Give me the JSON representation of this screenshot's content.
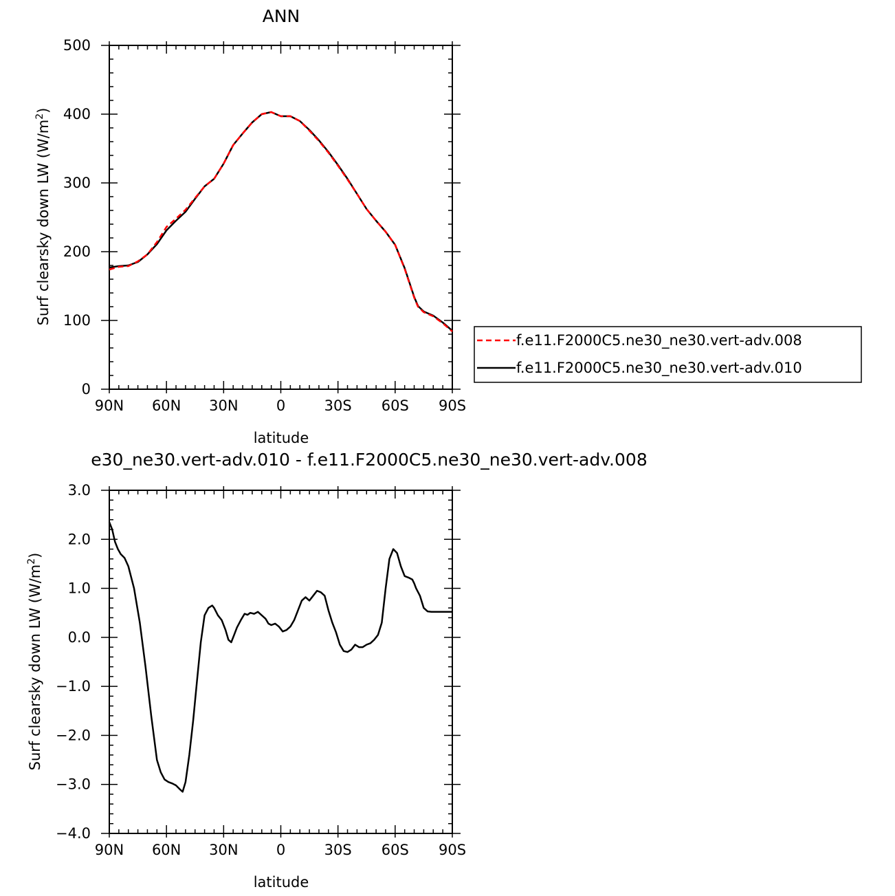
{
  "chart_data": [
    {
      "type": "line",
      "title": "ANN",
      "xlabel": "latitude",
      "ylabel_main": "Surf clearsky down LW (W/m",
      "ylabel_sup": "2",
      "ylabel_close": ")",
      "xlim": [
        90,
        -90
      ],
      "ylim": [
        0,
        500
      ],
      "x_ticks": [
        {
          "value": 90,
          "label": "90N"
        },
        {
          "value": 60,
          "label": "60N"
        },
        {
          "value": 30,
          "label": "30N"
        },
        {
          "value": 0,
          "label": "0"
        },
        {
          "value": -30,
          "label": "30S"
        },
        {
          "value": -60,
          "label": "60S"
        },
        {
          "value": -90,
          "label": "90S"
        }
      ],
      "y_ticks": [
        {
          "value": 0,
          "label": "0"
        },
        {
          "value": 100,
          "label": "100"
        },
        {
          "value": 200,
          "label": "200"
        },
        {
          "value": 300,
          "label": "300"
        },
        {
          "value": 400,
          "label": "400"
        },
        {
          "value": 500,
          "label": "500"
        }
      ],
      "legend": "right",
      "series": [
        {
          "name": "f.e11.F2000C5.ne30_ne30.vert-adv.008",
          "color": "#ff0000",
          "dash": true,
          "x": [
            90,
            85,
            80,
            75,
            70,
            65,
            60,
            55,
            50,
            45,
            40,
            35,
            30,
            25,
            20,
            15,
            10,
            5,
            0,
            -5,
            -10,
            -15,
            -20,
            -25,
            -30,
            -35,
            -40,
            -45,
            -50,
            -55,
            -60,
            -65,
            -68,
            -70,
            -72,
            -75,
            -80,
            -85,
            -90
          ],
          "y": [
            174,
            178,
            179,
            186,
            196,
            214,
            236,
            248,
            261,
            278,
            295,
            306,
            328,
            355,
            372,
            388,
            400,
            403,
            397,
            397,
            390,
            376,
            361,
            344,
            325,
            305,
            284,
            262,
            245,
            229,
            210,
            175,
            150,
            133,
            120,
            112,
            106,
            96,
            84
          ]
        },
        {
          "name": "f.e11.F2000C5.ne30_ne30.vert-adv.010",
          "color": "#000000",
          "dash": false,
          "x": [
            90,
            85,
            80,
            75,
            70,
            65,
            60,
            55,
            50,
            45,
            40,
            35,
            30,
            25,
            20,
            15,
            10,
            5,
            0,
            -5,
            -10,
            -15,
            -20,
            -25,
            -30,
            -35,
            -40,
            -45,
            -50,
            -55,
            -60,
            -65,
            -68,
            -70,
            -72,
            -75,
            -80,
            -85,
            -90
          ],
          "y": [
            177,
            179,
            180,
            185,
            196,
            211,
            231,
            245,
            258,
            277,
            295,
            306,
            328,
            355,
            372,
            388,
            400,
            403,
            397,
            397,
            390,
            377,
            362,
            345,
            326,
            306,
            284,
            262,
            245,
            229,
            210,
            176,
            151,
            134,
            121,
            113,
            107,
            97,
            85
          ]
        }
      ]
    },
    {
      "type": "line",
      "title": "e30_ne30.vert-adv.010 - f.e11.F2000C5.ne30_ne30.vert-adv.008",
      "xlabel": "latitude",
      "ylabel_main": "Surf clearsky down LW (W/m",
      "ylabel_sup": "2",
      "ylabel_close": ")",
      "xlim": [
        90,
        -90
      ],
      "ylim": [
        -4.0,
        3.0
      ],
      "x_ticks": [
        {
          "value": 90,
          "label": "90N"
        },
        {
          "value": 60,
          "label": "60N"
        },
        {
          "value": 30,
          "label": "30N"
        },
        {
          "value": 0,
          "label": "0"
        },
        {
          "value": -30,
          "label": "30S"
        },
        {
          "value": -60,
          "label": "60S"
        },
        {
          "value": -90,
          "label": "90S"
        }
      ],
      "y_ticks": [
        {
          "value": -4.0,
          "label": "−4.0"
        },
        {
          "value": -3.0,
          "label": "−3.0"
        },
        {
          "value": -2.0,
          "label": "−2.0"
        },
        {
          "value": -1.0,
          "label": "−1.0"
        },
        {
          "value": 0.0,
          "label": "0.0"
        },
        {
          "value": 1.0,
          "label": "1.0"
        },
        {
          "value": 2.0,
          "label": "2.0"
        },
        {
          "value": 3.0,
          "label": "3.0"
        }
      ],
      "series": [
        {
          "color": "#000000",
          "dash": false,
          "x": [
            90,
            88.5,
            87,
            85.5,
            84,
            82,
            80,
            77,
            74,
            71,
            68,
            65,
            63,
            61,
            59,
            57,
            55,
            53,
            51.5,
            50,
            48,
            46,
            44,
            42,
            40,
            38,
            36,
            35,
            33,
            31,
            29,
            27.5,
            26,
            24.5,
            23,
            21,
            19,
            17.5,
            16,
            14,
            12,
            10,
            8,
            6.5,
            5,
            3,
            1,
            -1,
            -3,
            -5,
            -7,
            -9,
            -11,
            -13,
            -15,
            -17,
            -19,
            -21,
            -23,
            -25,
            -27,
            -29,
            -31,
            -33,
            -35,
            -37,
            -39,
            -41,
            -43,
            -45,
            -47,
            -49,
            -51,
            -53,
            -55,
            -57,
            -59,
            -61,
            -63,
            -65,
            -67,
            -69,
            -70,
            -71,
            -73,
            -75,
            -77,
            -79,
            -81,
            -83,
            -85,
            -87,
            -89,
            -90
          ],
          "y": [
            2.35,
            2.2,
            1.95,
            1.8,
            1.7,
            1.62,
            1.45,
            1.0,
            0.3,
            -0.6,
            -1.6,
            -2.5,
            -2.75,
            -2.9,
            -2.95,
            -2.98,
            -3.02,
            -3.1,
            -3.15,
            -2.95,
            -2.4,
            -1.7,
            -0.9,
            -0.1,
            0.45,
            0.6,
            0.65,
            0.6,
            0.45,
            0.35,
            0.15,
            -0.05,
            -0.1,
            0.05,
            0.2,
            0.35,
            0.48,
            0.46,
            0.5,
            0.48,
            0.52,
            0.45,
            0.38,
            0.28,
            0.25,
            0.28,
            0.22,
            0.12,
            0.15,
            0.22,
            0.35,
            0.55,
            0.75,
            0.82,
            0.75,
            0.85,
            0.95,
            0.92,
            0.85,
            0.55,
            0.3,
            0.1,
            -0.15,
            -0.28,
            -0.3,
            -0.25,
            -0.15,
            -0.2,
            -0.2,
            -0.15,
            -0.12,
            -0.05,
            0.05,
            0.3,
            1.0,
            1.6,
            1.8,
            1.72,
            1.45,
            1.25,
            1.22,
            1.18,
            1.1,
            1.0,
            0.85,
            0.6,
            0.53,
            0.52,
            0.52,
            0.52,
            0.52,
            0.52,
            0.52,
            0.52
          ]
        }
      ]
    }
  ]
}
